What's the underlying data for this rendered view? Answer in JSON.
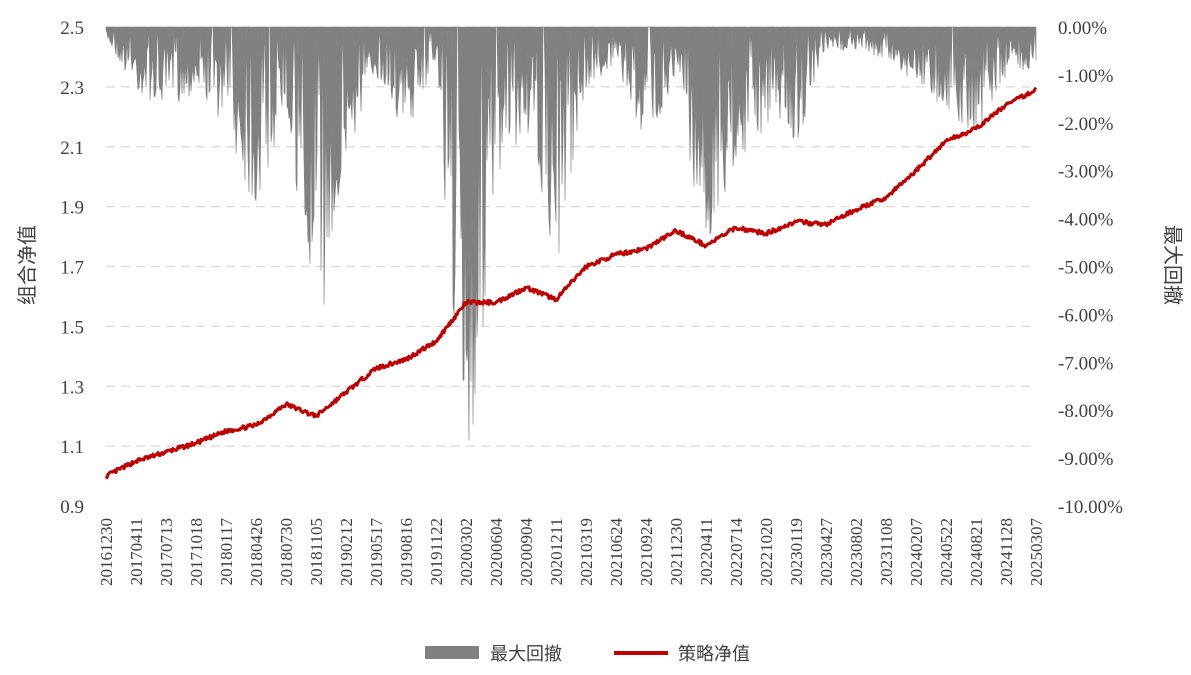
{
  "chart_data": {
    "type": "line",
    "ylabel_left": "组合净值",
    "ylabel_right": "最大回撤",
    "ylim_left": [
      0.9,
      2.5
    ],
    "yticks_left": [
      "2.5",
      "2.3",
      "2.1",
      "1.9",
      "1.7",
      "1.5",
      "1.3",
      "1.1",
      "0.9"
    ],
    "ylim_right": [
      -10.0,
      0.0
    ],
    "yticks_right": [
      "0.00%",
      "-1.00%",
      "-2.00%",
      "-3.00%",
      "-4.00%",
      "-5.00%",
      "-6.00%",
      "-7.00%",
      "-8.00%",
      "-9.00%",
      "-10.00%"
    ],
    "grid": true,
    "legend_position": "bottom",
    "colors": {
      "nav": "#c00000",
      "drawdown": "#808080"
    },
    "x": [
      "20161230",
      "20170411",
      "20170713",
      "20171018",
      "20180117",
      "20180426",
      "20180730",
      "20181105",
      "20190212",
      "20190517",
      "20190816",
      "20191122",
      "20200302",
      "20200604",
      "20200904",
      "20201211",
      "20210319",
      "20210624",
      "20210924",
      "20211230",
      "20220411",
      "20220714",
      "20221020",
      "20230119",
      "20230427",
      "20230802",
      "20231108",
      "20240207",
      "20240522",
      "20240821",
      "20241128",
      "20250307"
    ],
    "series": [
      {
        "name": "策略净值",
        "kind": "line",
        "axis": "left",
        "values": [
          1.0,
          1.05,
          1.08,
          1.11,
          1.15,
          1.17,
          1.24,
          1.2,
          1.28,
          1.36,
          1.39,
          1.45,
          1.58,
          1.58,
          1.63,
          1.59,
          1.7,
          1.74,
          1.76,
          1.82,
          1.77,
          1.83,
          1.81,
          1.85,
          1.84,
          1.89,
          1.93,
          2.02,
          2.12,
          2.16,
          2.24,
          2.29
        ]
      },
      {
        "name": "最大回撤",
        "kind": "area",
        "axis": "right",
        "values": [
          -0.2,
          -1.2,
          -1.5,
          -1.2,
          -1.8,
          -3.5,
          -1.4,
          -6.0,
          -2.5,
          -0.9,
          -2.0,
          -0.6,
          -9.1,
          -3.0,
          -1.8,
          -4.5,
          -1.2,
          -0.7,
          -2.2,
          -0.9,
          -4.3,
          -2.6,
          -1.8,
          -2.2,
          -0.5,
          -0.4,
          -0.6,
          -1.1,
          -1.5,
          -2.0,
          -1.0,
          -0.7
        ]
      }
    ]
  },
  "legend": {
    "drawdown": "最大回撤",
    "nav": "策略净值"
  }
}
